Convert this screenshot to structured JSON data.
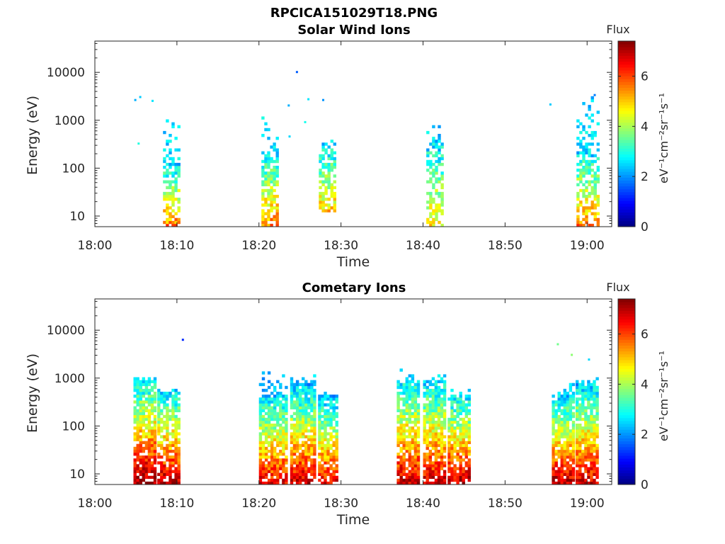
{
  "figure": {
    "filename": "RPCICA151029T18.PNG"
  },
  "colormap": "jet",
  "chart_data": [
    {
      "type": "heatmap",
      "title": "Solar Wind Ions",
      "xlabel": "Time",
      "ylabel": "Energy (eV)",
      "x_ticks": [
        "18:00",
        "18:10",
        "18:20",
        "18:30",
        "18:40",
        "18:50",
        "19:00"
      ],
      "x_range_min": [
        0,
        63
      ],
      "y_scale": "log",
      "y_ticks": [
        "10",
        "100",
        "1000",
        "10000"
      ],
      "y_range_eV": [
        6,
        45000
      ],
      "colorbar": {
        "label_top": "Flux",
        "label_side": "eV⁻¹cm⁻²sr⁻¹s⁻¹",
        "ticks": [
          "0",
          "2",
          "4",
          "6"
        ],
        "range": [
          0,
          7.4
        ]
      },
      "bursts": [
        {
          "t0": 8.3,
          "t1": 10.3,
          "emin": 6,
          "emax": 120,
          "vlo": 2.5,
          "vhi": 5.6,
          "density": 0.65,
          "sparse_to": 1300
        },
        {
          "t0": 20.3,
          "t1": 22.3,
          "emin": 6,
          "emax": 180,
          "vlo": 2.6,
          "vhi": 5.6,
          "density": 0.7,
          "sparse_to": 1400
        },
        {
          "t0": 27.3,
          "t1": 29.2,
          "emin": 12,
          "emax": 300,
          "vlo": 2.5,
          "vhi": 5.0,
          "density": 0.6,
          "sparse_to": 400
        },
        {
          "t0": 40.4,
          "t1": 42.2,
          "emin": 6,
          "emax": 320,
          "vlo": 2.5,
          "vhi": 4.8,
          "density": 0.55,
          "sparse_to": 800
        },
        {
          "t0": 58.7,
          "t1": 61.2,
          "emin": 6,
          "emax": 200,
          "vlo": 2.5,
          "vhi": 5.6,
          "density": 0.6,
          "sparse_to": 3300
        }
      ],
      "points": [
        {
          "t": 4.8,
          "e": 2600,
          "v": 2.2
        },
        {
          "t": 5.4,
          "e": 3000,
          "v": 2.4
        },
        {
          "t": 6.9,
          "e": 2500,
          "v": 2.6
        },
        {
          "t": 5.2,
          "e": 320,
          "v": 3.0
        },
        {
          "t": 24.5,
          "e": 10000,
          "v": 1.6
        },
        {
          "t": 23.5,
          "e": 2000,
          "v": 2.2
        },
        {
          "t": 25.9,
          "e": 2700,
          "v": 2.6
        },
        {
          "t": 27.7,
          "e": 2600,
          "v": 2.0
        },
        {
          "t": 25.5,
          "e": 900,
          "v": 2.9
        },
        {
          "t": 23.6,
          "e": 450,
          "v": 2.5
        },
        {
          "t": 55.4,
          "e": 2100,
          "v": 2.4
        },
        {
          "t": 60.8,
          "e": 3300,
          "v": 1.8
        }
      ]
    },
    {
      "type": "heatmap",
      "title": "Cometary Ions",
      "xlabel": "Time",
      "ylabel": "Energy (eV)",
      "x_ticks": [
        "18:00",
        "18:10",
        "18:20",
        "18:30",
        "18:40",
        "18:50",
        "19:00"
      ],
      "x_range_min": [
        0,
        63
      ],
      "y_scale": "log",
      "y_ticks": [
        "10",
        "100",
        "1000",
        "10000"
      ],
      "y_range_eV": [
        6,
        45000
      ],
      "colorbar": {
        "label_top": "Flux",
        "label_side": "eV⁻¹cm⁻²sr⁻¹s⁻¹",
        "ticks": [
          "0",
          "2",
          "4",
          "6"
        ],
        "range": [
          0,
          7.4
        ]
      },
      "bursts": [
        {
          "t0": 4.7,
          "t1": 7.2,
          "emin": 6,
          "emax": 900,
          "vlo": 2.5,
          "vhi": 7.2,
          "density": 0.85,
          "sparse_to": 1000
        },
        {
          "t0": 7.6,
          "t1": 10.3,
          "emin": 6,
          "emax": 500,
          "vlo": 2.5,
          "vhi": 7.0,
          "density": 0.8,
          "sparse_to": 600
        },
        {
          "t0": 20.0,
          "t1": 23.3,
          "emin": 6,
          "emax": 450,
          "vlo": 2.3,
          "vhi": 6.6,
          "density": 0.85,
          "sparse_to": 1600
        },
        {
          "t0": 23.8,
          "t1": 26.9,
          "emin": 6,
          "emax": 700,
          "vlo": 2.3,
          "vhi": 6.8,
          "density": 0.85,
          "sparse_to": 1100
        },
        {
          "t0": 27.2,
          "t1": 29.6,
          "emin": 6,
          "emax": 400,
          "vlo": 2.3,
          "vhi": 6.6,
          "density": 0.8,
          "sparse_to": 500
        },
        {
          "t0": 36.8,
          "t1": 39.6,
          "emin": 6,
          "emax": 900,
          "vlo": 2.5,
          "vhi": 6.8,
          "density": 0.85,
          "sparse_to": 1600
        },
        {
          "t0": 40.0,
          "t1": 42.7,
          "emin": 6,
          "emax": 800,
          "vlo": 2.5,
          "vhi": 6.8,
          "density": 0.85,
          "sparse_to": 1200
        },
        {
          "t0": 43.0,
          "t1": 45.8,
          "emin": 6,
          "emax": 400,
          "vlo": 2.5,
          "vhi": 7.0,
          "density": 0.8,
          "sparse_to": 600
        },
        {
          "t0": 55.7,
          "t1": 58.2,
          "emin": 6,
          "emax": 400,
          "vlo": 2.5,
          "vhi": 7.0,
          "density": 0.85,
          "sparse_to": 1000
        },
        {
          "t0": 58.6,
          "t1": 61.4,
          "emin": 6,
          "emax": 700,
          "vlo": 2.4,
          "vhi": 6.8,
          "density": 0.85,
          "sparse_to": 1000
        }
      ],
      "points": [
        {
          "t": 10.6,
          "e": 6200,
          "v": 1.2
        },
        {
          "t": 56.3,
          "e": 5000,
          "v": 3.6
        },
        {
          "t": 58.0,
          "e": 3000,
          "v": 3.8
        },
        {
          "t": 60.1,
          "e": 2400,
          "v": 2.5
        }
      ]
    }
  ]
}
